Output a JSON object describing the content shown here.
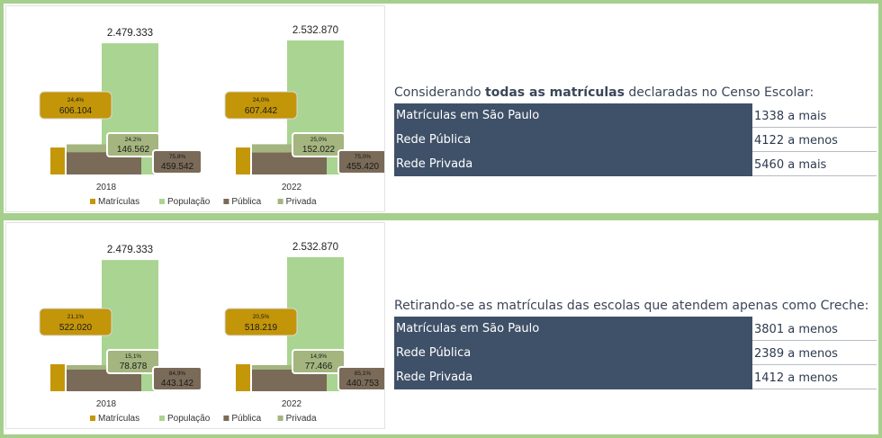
{
  "colors": {
    "matriculas": "#c49708",
    "populacao": "#a9d491",
    "publica": "#7a6a58",
    "privada": "#a4b57f",
    "label_box_matriculas": "#c39508",
    "header_bg": "#3f5168"
  },
  "panels": [
    {
      "info": {
        "title_pre": "Considerando ",
        "title_bold": "todas as matrículas",
        "title_post": " declaradas no Censo Escolar:",
        "rows": [
          {
            "label": "Matrículas em São Paulo",
            "value": "1338 a mais"
          },
          {
            "label": "Rede Pública",
            "value": "4122 a menos"
          },
          {
            "label": "Rede Privada",
            "value": "5460 a mais"
          }
        ]
      }
    },
    {
      "info": {
        "title_pre": "Retirando-se as matrículas das escolas que atendem apenas como Creche:",
        "title_bold": "",
        "title_post": "",
        "rows": [
          {
            "label": "Matrículas em São Paulo",
            "value": "3801 a menos"
          },
          {
            "label": "Rede Pública",
            "value": "2389 a menos"
          },
          {
            "label": "Rede Privada",
            "value": "1412 a menos"
          }
        ]
      }
    }
  ],
  "chart_data": [
    {
      "type": "bar",
      "categories": [
        "2018",
        "2022"
      ],
      "legend": [
        "Matrículas",
        "População",
        "Pública",
        "Privada"
      ],
      "series": [
        {
          "name": "Matrículas",
          "values": [
            606104,
            607442
          ],
          "labels": [
            "606.104",
            "607.442"
          ],
          "pct": [
            "24,4%",
            "24,0%"
          ]
        },
        {
          "name": "População",
          "values": [
            2479333,
            2532870
          ],
          "labels": [
            "2.479.333",
            "2.532.870"
          ]
        },
        {
          "name": "Pública",
          "values": [
            459542,
            455420
          ],
          "labels": [
            "459.542",
            "455.420"
          ],
          "pct": [
            "75,8%",
            "75,0%"
          ]
        },
        {
          "name": "Privada",
          "values": [
            146562,
            152022
          ],
          "labels": [
            "146.562",
            "152.022"
          ],
          "pct": [
            "24,2%",
            "25,0%"
          ]
        }
      ],
      "ylim": [
        0,
        2600000
      ],
      "legend_position": "bottom"
    },
    {
      "type": "bar",
      "categories": [
        "2018",
        "2022"
      ],
      "legend": [
        "Matrículas",
        "População",
        "Pública",
        "Privada"
      ],
      "series": [
        {
          "name": "Matrículas",
          "values": [
            522020,
            518219
          ],
          "labels": [
            "522.020",
            "518.219"
          ],
          "pct": [
            "21,1%",
            "20,5%"
          ]
        },
        {
          "name": "População",
          "values": [
            2479333,
            2532870
          ],
          "labels": [
            "2.479.333",
            "2.532.870"
          ]
        },
        {
          "name": "Pública",
          "values": [
            443142,
            440753
          ],
          "labels": [
            "443.142",
            "440.753"
          ],
          "pct": [
            "84,9%",
            "85,1%"
          ]
        },
        {
          "name": "Privada",
          "values": [
            78878,
            77466
          ],
          "labels": [
            "78.878",
            "77.466"
          ],
          "pct": [
            "15,1%",
            "14,9%"
          ]
        }
      ],
      "ylim": [
        0,
        2600000
      ],
      "legend_position": "bottom"
    }
  ]
}
